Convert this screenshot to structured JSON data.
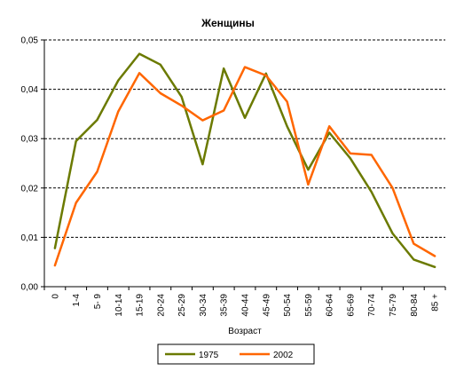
{
  "chart_data": {
    "type": "line",
    "title": "Женщины",
    "xlabel": "Возраст",
    "ylabel": "",
    "ylim": [
      0,
      0.05
    ],
    "y_ticks": [
      "0,00",
      "0,01",
      "0,02",
      "0,03",
      "0,04",
      "0,05"
    ],
    "grid": "horizontal dashed",
    "legend_position": "bottom",
    "categories": [
      "0",
      "1-4",
      "5- 9",
      "10-14",
      "15-19",
      "20-24",
      "25-29",
      "30-34",
      "35-39",
      "40-44",
      "45-49",
      "50-54",
      "55-59",
      "60-64",
      "65-69",
      "70-74",
      "75-79",
      "80-84",
      "85 +"
    ],
    "series": [
      {
        "name": "1975",
        "color": "#6b7a00",
        "values": [
          0.0078,
          0.0295,
          0.0338,
          0.0418,
          0.0472,
          0.045,
          0.0385,
          0.0248,
          0.0442,
          0.0342,
          0.0432,
          0.0325,
          0.0237,
          0.0312,
          0.026,
          0.0192,
          0.0108,
          0.0055,
          0.004
        ]
      },
      {
        "name": "2002",
        "color": "#ff6600",
        "values": [
          0.0043,
          0.017,
          0.0233,
          0.0355,
          0.0433,
          0.0392,
          0.0367,
          0.0337,
          0.0357,
          0.0445,
          0.0428,
          0.0375,
          0.0207,
          0.0325,
          0.027,
          0.0267,
          0.02,
          0.0087,
          0.0062
        ]
      }
    ]
  }
}
